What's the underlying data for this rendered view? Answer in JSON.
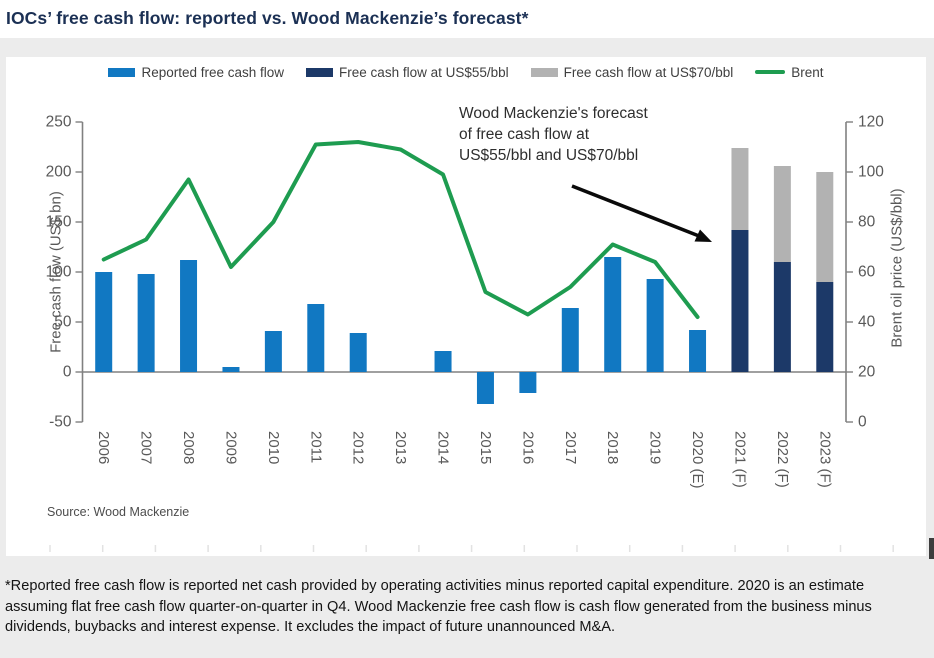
{
  "title": "IOCs’ free cash flow: reported vs. Wood Mackenzie’s forecast*",
  "legend": [
    {
      "label": "Reported free cash flow",
      "color": "#1178C2",
      "swatch": "rect"
    },
    {
      "label": "Free cash flow at US$55/bbl",
      "color": "#1C3968",
      "swatch": "rect"
    },
    {
      "label": "Free cash flow at US$70/bbl",
      "color": "#B2B2B2",
      "swatch": "rect"
    },
    {
      "label": "Brent",
      "color": "#1E9C50",
      "swatch": "line"
    }
  ],
  "annotation": {
    "lines": [
      "Wood Mackenzie's forecast",
      "of free cash flow at",
      "US$55/bbl and US$70/bbl"
    ]
  },
  "source": "Source: Wood Mackenzie",
  "footnote": "*Reported free cash flow is reported net cash provided by operating activities minus reported capital expenditure. 2020 is an estimate assuming flat free cash flow quarter-on-quarter in Q4. Wood Mackenzie free cash flow is cash flow generated from the business minus dividends, buybacks and interest expense. It excludes the impact of future unannounced M&A.",
  "chart_data": {
    "type": "bar",
    "subtype": "bar-line-combo",
    "categories": [
      "2006",
      "2007",
      "2008",
      "2009",
      "2010",
      "2011",
      "2012",
      "2013",
      "2014",
      "2015",
      "2016",
      "2017",
      "2018",
      "2019",
      "2020 (E)",
      "2021 (F)",
      "2022 (F)",
      "2023 (F)"
    ],
    "series": [
      {
        "name": "Reported free cash flow",
        "type": "bar",
        "axis": "left",
        "color": "#1178C2",
        "values": [
          100,
          98,
          112,
          5,
          41,
          68,
          39,
          0,
          21,
          -32,
          -21,
          64,
          115,
          93,
          42,
          null,
          null,
          null
        ]
      },
      {
        "name": "Free cash flow at US$55/bbl",
        "type": "bar",
        "axis": "left",
        "color": "#1C3968",
        "values": [
          null,
          null,
          null,
          null,
          null,
          null,
          null,
          null,
          null,
          null,
          null,
          null,
          null,
          null,
          null,
          142,
          110,
          90
        ]
      },
      {
        "name": "Free cash flow at US$70/bbl",
        "type": "bar",
        "axis": "left",
        "color": "#B2B2B2",
        "stacked_on": "Free cash flow at US$55/bbl",
        "values": [
          null,
          null,
          null,
          null,
          null,
          null,
          null,
          null,
          null,
          null,
          null,
          null,
          null,
          null,
          null,
          82,
          96,
          110
        ],
        "totals": [
          null,
          null,
          null,
          null,
          null,
          null,
          null,
          null,
          null,
          null,
          null,
          null,
          null,
          null,
          null,
          224,
          206,
          200
        ]
      },
      {
        "name": "Brent",
        "type": "line",
        "axis": "right",
        "color": "#1E9C50",
        "values": [
          65,
          73,
          97,
          62,
          80,
          111,
          112,
          109,
          99,
          52,
          43,
          54,
          71,
          64,
          42,
          null,
          null,
          null
        ]
      }
    ],
    "left_axis": {
      "label": "Free cash flow (US$ bn)",
      "min": -50,
      "max": 250,
      "step": 50
    },
    "right_axis": {
      "label": "Brent oil price (US$/bbl)",
      "min": 0,
      "max": 120,
      "step": 20
    },
    "grid": false,
    "legend_position": "top"
  }
}
